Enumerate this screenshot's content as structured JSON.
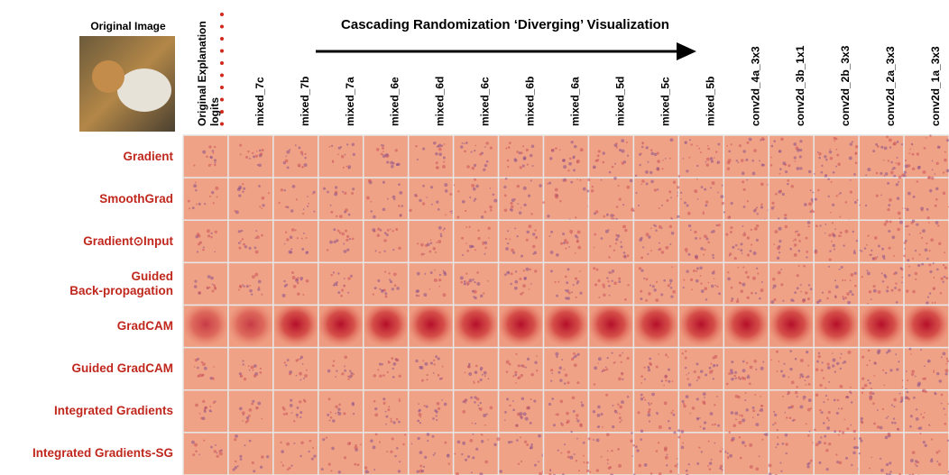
{
  "figure": {
    "title": "Cascading Randomization ‘Diverging’ Visualization",
    "original_image_label": "Original Image",
    "columns": [
      "Original Explanation",
      "logits",
      "mixed_7c",
      "mixed_7b",
      "mixed_7a",
      "mixed_6e",
      "mixed_6d",
      "mixed_6c",
      "mixed_6b",
      "mixed_6a",
      "mixed_5d",
      "mixed_5c",
      "mixed_5b",
      "conv2d_4a_3x3",
      "conv2d_3b_1x1",
      "conv2d_2b_3x3",
      "conv2d_2a_3x3",
      "conv2d_1a_3x3"
    ],
    "rows": [
      "Gradient",
      "SmoothGrad",
      "Gradient⊙Input",
      "Guided\nBack-propagation",
      "GradCAM",
      "Guided GradCAM",
      "Integrated Gradients",
      "Integrated Gradients-SG"
    ]
  }
}
